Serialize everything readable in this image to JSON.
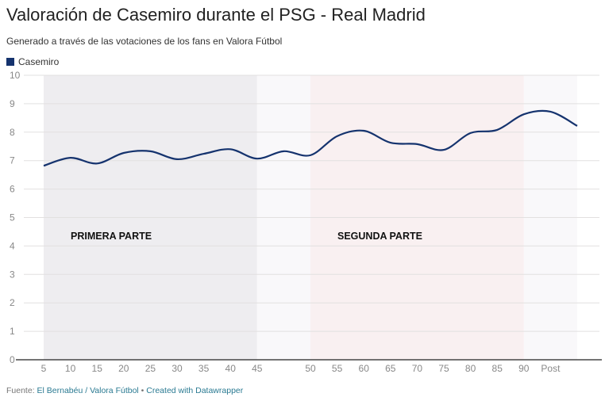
{
  "chart_data": {
    "type": "line",
    "title": "Valoración de Casemiro durante el PSG - Real Madrid",
    "subtitle": "Generado a través de las votaciones de los fans en Valora Fútbol",
    "categories": [
      "5",
      "10",
      "15",
      "20",
      "25",
      "30",
      "35",
      "40",
      "45",
      "",
      "50",
      "55",
      "60",
      "65",
      "70",
      "75",
      "80",
      "85",
      "90",
      "Post",
      ""
    ],
    "series": [
      {
        "name": "Casemiro",
        "color": "#15336e",
        "values": [
          6.82,
          7.1,
          6.9,
          7.27,
          7.33,
          7.05,
          7.24,
          7.4,
          7.07,
          7.33,
          7.19,
          7.86,
          8.05,
          7.63,
          7.58,
          7.38,
          7.97,
          8.08,
          8.63,
          8.72,
          8.22
        ]
      }
    ],
    "ylim": [
      0,
      10
    ],
    "yticks": [
      0,
      1,
      2,
      3,
      4,
      5,
      6,
      7,
      8,
      9,
      10
    ],
    "grid": true,
    "legend_placement": "top-left",
    "shaded_ranges": [
      {
        "from": "5",
        "to": "45",
        "label": "PRIMERA PARTE",
        "color": "#eeedf0"
      },
      {
        "from": "45",
        "to": "50",
        "label": "",
        "color": "#f9f8fa"
      },
      {
        "from": "50",
        "to": "90",
        "label": "SEGUNDA PARTE",
        "color": "#f9f0f1"
      },
      {
        "from": "90",
        "to": "end",
        "label": "",
        "color": "#f9f8fa"
      }
    ]
  },
  "footer": {
    "prefix": "Fuente: ",
    "source": "El Bernabéu / Valora Fútbol",
    "sep": " • ",
    "credit": "Created with Datawrapper"
  }
}
